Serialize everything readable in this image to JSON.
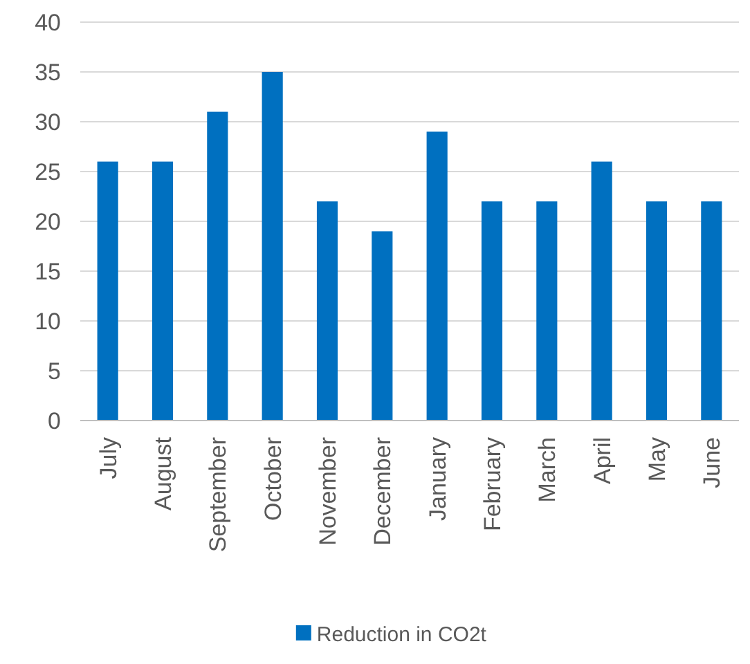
{
  "chart_data": {
    "type": "bar",
    "categories": [
      "July",
      "August",
      "September",
      "October",
      "November",
      "December",
      "January",
      "February",
      "March",
      "April",
      "May",
      "June"
    ],
    "series": [
      {
        "name": "Reduction in CO2t",
        "color": "#0070c0",
        "values": [
          26,
          26,
          31,
          35,
          22,
          19,
          29,
          22,
          22,
          26,
          22,
          22
        ]
      }
    ],
    "ylim": [
      0,
      40
    ],
    "yticks": [
      0,
      5,
      10,
      15,
      20,
      25,
      30,
      35,
      40
    ],
    "grid": "y",
    "legend": "bottom"
  }
}
